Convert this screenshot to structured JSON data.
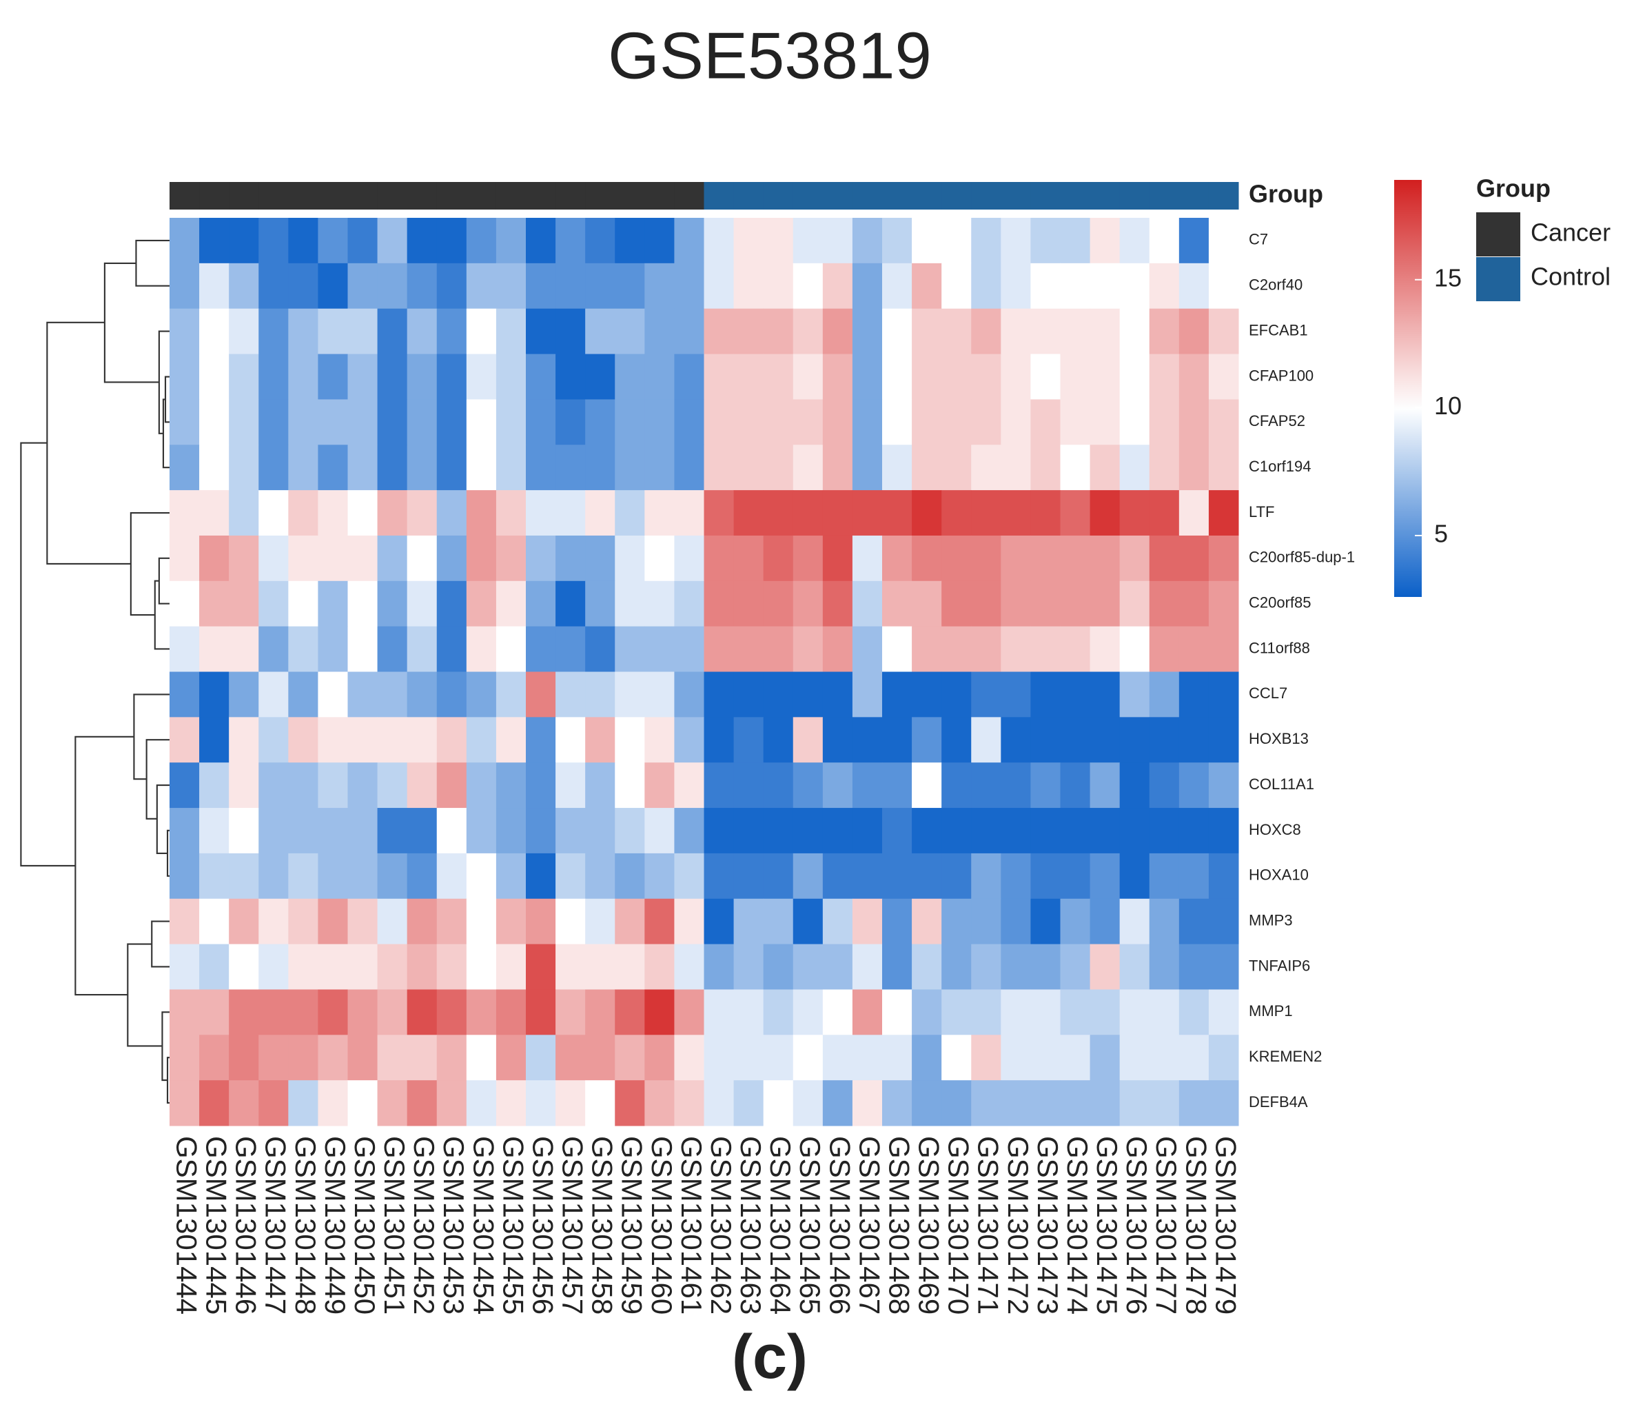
{
  "chart_data": {
    "type": "heatmap",
    "title": "GSE53819",
    "caption": "(c)",
    "rows": [
      "C7",
      "C2orf40",
      "EFCAB1",
      "CFAP100",
      "CFAP52",
      "C1orf194",
      "LTF",
      "C20orf85-dup-1",
      "C20orf85",
      "C11orf88",
      "CCL7",
      "HOXB13",
      "COL11A1",
      "HOXC8",
      "HOXA10",
      "MMP3",
      "TNFAIP6",
      "MMP1",
      "KREMEN2",
      "DEFB4A"
    ],
    "columns": [
      "GSM1301444",
      "GSM1301445",
      "GSM1301446",
      "GSM1301447",
      "GSM1301448",
      "GSM1301449",
      "GSM1301450",
      "GSM1301451",
      "GSM1301452",
      "GSM1301453",
      "GSM1301454",
      "GSM1301455",
      "GSM1301456",
      "GSM1301457",
      "GSM1301458",
      "GSM1301459",
      "GSM1301460",
      "GSM1301461",
      "GSM1301462",
      "GSM1301463",
      "GSM1301464",
      "GSM1301465",
      "GSM1301466",
      "GSM1301467",
      "GSM1301468",
      "GSM1301469",
      "GSM1301470",
      "GSM1301471",
      "GSM1301472",
      "GSM1301473",
      "GSM1301474",
      "GSM1301475",
      "GSM1301476",
      "GSM1301477",
      "GSM1301478",
      "GSM1301479"
    ],
    "values": [
      [
        6,
        3,
        3,
        4,
        3,
        5,
        4,
        7,
        3,
        3,
        5,
        6,
        3,
        5,
        4,
        3,
        3,
        6,
        9,
        11,
        11,
        9,
        9,
        7,
        8,
        10,
        10,
        8,
        9,
        8,
        8,
        11,
        9,
        10,
        4,
        10
      ],
      [
        6,
        9,
        7,
        4,
        4,
        3,
        6,
        6,
        5,
        4,
        7,
        7,
        5,
        5,
        5,
        5,
        6,
        6,
        9,
        11,
        11,
        10,
        12,
        6,
        9,
        13,
        10,
        8,
        9,
        10,
        10,
        10,
        10,
        11,
        9,
        10
      ],
      [
        7,
        10,
        9,
        5,
        7,
        8,
        8,
        4,
        7,
        5,
        10,
        8,
        3,
        3,
        7,
        7,
        6,
        6,
        13,
        13,
        13,
        12,
        14,
        6,
        10,
        12,
        12,
        13,
        11,
        11,
        11,
        11,
        10,
        13,
        14,
        12
      ],
      [
        7,
        10,
        8,
        5,
        7,
        5,
        7,
        4,
        6,
        4,
        9,
        8,
        5,
        3,
        3,
        6,
        6,
        5,
        12,
        12,
        12,
        11,
        13,
        6,
        10,
        12,
        12,
        12,
        11,
        10,
        11,
        11,
        10,
        12,
        13,
        11
      ],
      [
        7,
        10,
        8,
        5,
        7,
        7,
        7,
        4,
        6,
        4,
        10,
        8,
        5,
        4,
        5,
        6,
        6,
        5,
        12,
        12,
        12,
        12,
        13,
        6,
        10,
        12,
        12,
        12,
        11,
        12,
        11,
        11,
        10,
        12,
        13,
        12
      ],
      [
        6,
        10,
        8,
        5,
        7,
        5,
        7,
        4,
        6,
        4,
        10,
        8,
        5,
        5,
        5,
        6,
        6,
        5,
        12,
        12,
        12,
        11,
        13,
        6,
        9,
        12,
        12,
        11,
        11,
        12,
        10,
        12,
        9,
        12,
        13,
        12
      ],
      [
        11,
        11,
        8,
        10,
        12,
        11,
        10,
        13,
        12,
        7,
        14,
        12,
        9,
        9,
        11,
        8,
        11,
        11,
        16,
        17,
        17,
        17,
        17,
        17,
        17,
        18,
        17,
        17,
        17,
        17,
        16,
        18,
        17,
        17,
        11,
        18
      ],
      [
        11,
        14,
        13,
        9,
        11,
        11,
        11,
        7,
        10,
        6,
        14,
        13,
        7,
        6,
        6,
        9,
        10,
        9,
        15,
        15,
        16,
        15,
        17,
        9,
        14,
        15,
        15,
        15,
        14,
        14,
        14,
        14,
        13,
        16,
        16,
        15
      ],
      [
        10,
        13,
        13,
        8,
        10,
        7,
        10,
        6,
        9,
        4,
        13,
        11,
        6,
        3,
        6,
        9,
        9,
        8,
        15,
        15,
        15,
        14,
        16,
        8,
        13,
        13,
        15,
        15,
        14,
        14,
        14,
        14,
        12,
        15,
        15,
        14
      ],
      [
        9,
        11,
        11,
        6,
        8,
        7,
        10,
        5,
        8,
        4,
        11,
        10,
        5,
        5,
        4,
        7,
        7,
        7,
        14,
        14,
        14,
        13,
        14,
        7,
        10,
        13,
        13,
        13,
        12,
        12,
        12,
        11,
        10,
        14,
        14,
        14
      ],
      [
        5,
        3,
        6,
        9,
        6,
        10,
        7,
        7,
        6,
        5,
        6,
        8,
        15,
        8,
        8,
        9,
        9,
        6,
        3,
        3,
        3,
        3,
        3,
        7,
        3,
        3,
        3,
        4,
        4,
        3,
        3,
        3,
        7,
        6,
        3,
        3
      ],
      [
        12,
        3,
        11,
        8,
        12,
        11,
        11,
        11,
        11,
        12,
        8,
        11,
        5,
        10,
        13,
        10,
        11,
        7,
        3,
        4,
        3,
        12,
        3,
        3,
        3,
        5,
        3,
        9,
        3,
        3,
        3,
        3,
        3,
        3,
        3,
        3
      ],
      [
        4,
        8,
        11,
        7,
        7,
        8,
        7,
        8,
        12,
        14,
        7,
        6,
        5,
        9,
        7,
        10,
        13,
        11,
        4,
        4,
        4,
        5,
        6,
        5,
        5,
        10,
        4,
        4,
        4,
        5,
        4,
        6,
        3,
        4,
        5,
        6
      ],
      [
        6,
        9,
        10,
        7,
        7,
        7,
        7,
        4,
        4,
        10,
        7,
        6,
        5,
        7,
        7,
        8,
        9,
        6,
        3,
        3,
        3,
        3,
        3,
        3,
        4,
        3,
        3,
        3,
        3,
        3,
        3,
        3,
        3,
        3,
        3,
        3
      ],
      [
        6,
        8,
        8,
        7,
        8,
        7,
        7,
        6,
        5,
        9,
        10,
        7,
        3,
        8,
        7,
        6,
        7,
        8,
        4,
        4,
        4,
        6,
        4,
        4,
        4,
        4,
        4,
        6,
        5,
        4,
        4,
        5,
        3,
        5,
        5,
        4
      ],
      [
        12,
        10,
        13,
        11,
        12,
        14,
        12,
        9,
        14,
        13,
        10,
        13,
        14,
        10,
        9,
        13,
        16,
        11,
        3,
        7,
        7,
        3,
        8,
        12,
        5,
        12,
        6,
        6,
        5,
        3,
        6,
        5,
        9,
        6,
        4,
        4
      ],
      [
        9,
        8,
        10,
        9,
        11,
        11,
        11,
        12,
        13,
        12,
        10,
        11,
        17,
        11,
        11,
        11,
        12,
        9,
        6,
        7,
        6,
        7,
        7,
        9,
        5,
        8,
        6,
        7,
        6,
        6,
        7,
        12,
        8,
        6,
        5,
        5
      ],
      [
        13,
        13,
        15,
        15,
        15,
        16,
        14,
        13,
        17,
        16,
        14,
        15,
        17,
        13,
        14,
        16,
        18,
        14,
        9,
        9,
        8,
        9,
        10,
        14,
        10,
        7,
        8,
        8,
        9,
        9,
        8,
        8,
        9,
        9,
        8,
        9
      ],
      [
        13,
        14,
        15,
        14,
        14,
        13,
        14,
        12,
        12,
        13,
        10,
        14,
        8,
        14,
        14,
        13,
        14,
        11,
        9,
        9,
        9,
        10,
        9,
        9,
        9,
        6,
        10,
        12,
        9,
        9,
        9,
        7,
        9,
        9,
        9,
        8
      ],
      [
        13,
        16,
        14,
        15,
        8,
        11,
        10,
        13,
        15,
        13,
        9,
        11,
        9,
        11,
        10,
        16,
        13,
        12,
        9,
        8,
        10,
        9,
        6,
        11,
        7,
        6,
        6,
        7,
        7,
        7,
        7,
        7,
        8,
        8,
        7,
        7
      ]
    ],
    "annotation_label": "Group",
    "column_groups": [
      "Cancer",
      "Cancer",
      "Cancer",
      "Cancer",
      "Cancer",
      "Cancer",
      "Cancer",
      "Cancer",
      "Cancer",
      "Cancer",
      "Cancer",
      "Cancer",
      "Cancer",
      "Cancer",
      "Cancer",
      "Cancer",
      "Cancer",
      "Cancer",
      "Control",
      "Control",
      "Control",
      "Control",
      "Control",
      "Control",
      "Control",
      "Control",
      "Control",
      "Control",
      "Control",
      "Control",
      "Control",
      "Control",
      "Control",
      "Control",
      "Control",
      "Control"
    ],
    "legend_title": "Group",
    "groups": [
      {
        "name": "Cancer",
        "color": "#333333"
      },
      {
        "name": "Control",
        "color": "#20639b"
      }
    ],
    "colorscale": {
      "low": "#0a5fc8",
      "mid": "#ffffff",
      "high": "#d21f1f",
      "midpoint": 10
    },
    "clim": [
      2.6,
      18.9
    ],
    "cticks": [
      5,
      10,
      15
    ]
  }
}
